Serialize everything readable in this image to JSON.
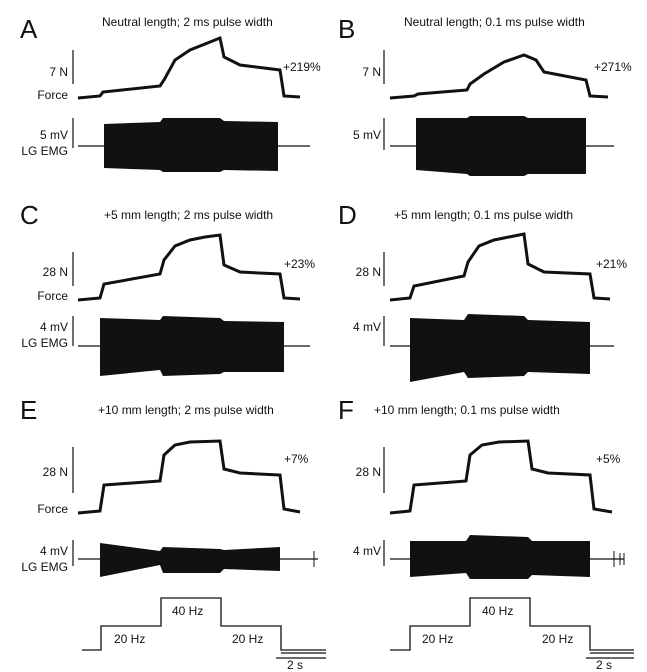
{
  "panels": [
    {
      "letter": "A",
      "title": "Neutral length; 2 ms pulse width",
      "force_scale": "7 N",
      "force_label": "Force",
      "emg_scale": "5 mV",
      "emg_label": "LG EMG",
      "percent": "+219%"
    },
    {
      "letter": "B",
      "title": "Neutral length; 0.1 ms pulse width",
      "force_scale": "7 N",
      "force_label": "",
      "emg_scale": "5 mV",
      "emg_label": "",
      "percent": "+271%"
    },
    {
      "letter": "C",
      "title": "+5 mm length; 2 ms pulse width",
      "force_scale": "28 N",
      "force_label": "Force",
      "emg_scale": "4 mV",
      "emg_label": "LG EMG",
      "percent": "+23%"
    },
    {
      "letter": "D",
      "title": "+5 mm length; 0.1 ms pulse width",
      "force_scale": "28 N",
      "force_label": "",
      "emg_scale": "4 mV",
      "emg_label": "",
      "percent": "+21%"
    },
    {
      "letter": "E",
      "title": "+10 mm length; 2 ms pulse width",
      "force_scale": "28 N",
      "force_label": "Force",
      "emg_scale": "4 mV",
      "emg_label": "LG EMG",
      "percent": "+7%"
    },
    {
      "letter": "F",
      "title": "+10 mm length; 0.1 ms pulse width",
      "force_scale": "28 N",
      "force_label": "",
      "emg_scale": "4 mV",
      "emg_label": "",
      "percent": "+5%"
    }
  ],
  "stimulus": {
    "left": {
      "low1": "20 Hz",
      "high": "40 Hz",
      "low2": "20 Hz",
      "time_scale": "2 s"
    },
    "right": {
      "low1": "20 Hz",
      "high": "40 Hz",
      "low2": "20 Hz",
      "time_scale": "2 s"
    }
  }
}
